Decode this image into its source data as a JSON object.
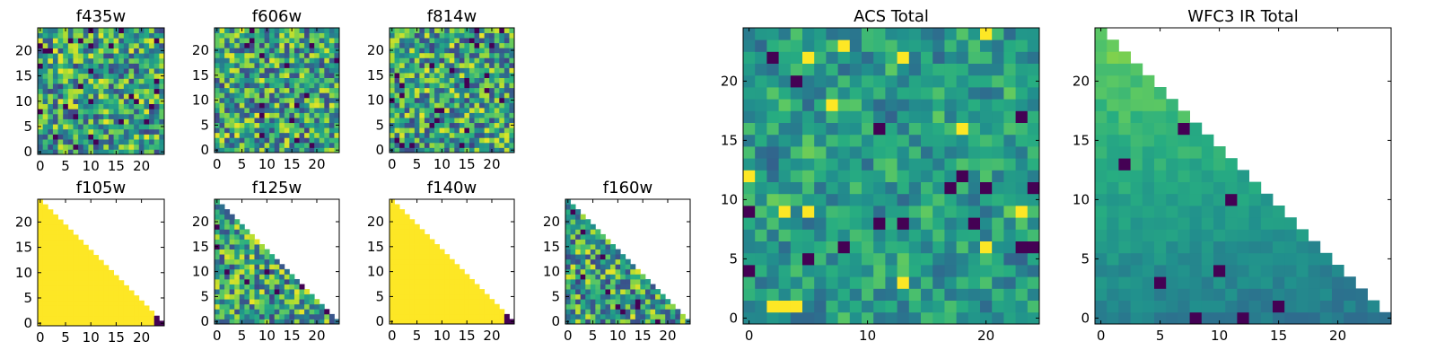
{
  "chart_data": [
    {
      "type": "heatmap",
      "title": "f435w",
      "grid_size": 25,
      "mask": "none",
      "style": "noisy",
      "seed": 11,
      "xticks": [
        0,
        5,
        10,
        15,
        20
      ],
      "yticks": [
        0,
        5,
        10,
        15,
        20
      ],
      "xlim": [
        -0.5,
        24.5
      ],
      "ylim": [
        -0.5,
        24.5
      ]
    },
    {
      "type": "heatmap",
      "title": "f606w",
      "grid_size": 25,
      "mask": "none",
      "style": "noisy",
      "seed": 23,
      "xticks": [
        0,
        5,
        10,
        15,
        20
      ],
      "yticks": [
        0,
        5,
        10,
        15,
        20
      ],
      "xlim": [
        -0.5,
        24.5
      ],
      "ylim": [
        -0.5,
        24.5
      ]
    },
    {
      "type": "heatmap",
      "title": "f814w",
      "grid_size": 25,
      "mask": "none",
      "style": "noisy",
      "seed": 37,
      "xticks": [
        0,
        5,
        10,
        15,
        20
      ],
      "yticks": [
        0,
        5,
        10,
        15,
        20
      ],
      "xlim": [
        -0.5,
        24.5
      ],
      "ylim": [
        -0.5,
        24.5
      ]
    },
    {
      "type": "heatmap",
      "title": "f105w",
      "grid_size": 25,
      "mask": "triangle",
      "style": "flat",
      "seed": 41,
      "xticks": [
        0,
        5,
        10,
        15,
        20
      ],
      "yticks": [
        0,
        5,
        10,
        15,
        20
      ],
      "xlim": [
        -0.5,
        24.5
      ],
      "ylim": [
        -0.5,
        24.5
      ]
    },
    {
      "type": "heatmap",
      "title": "f125w",
      "grid_size": 25,
      "mask": "triangle",
      "style": "noisy",
      "seed": 53,
      "xticks": [
        0,
        5,
        10,
        15,
        20
      ],
      "yticks": [
        0,
        5,
        10,
        15,
        20
      ],
      "xlim": [
        -0.5,
        24.5
      ],
      "ylim": [
        -0.5,
        24.5
      ]
    },
    {
      "type": "heatmap",
      "title": "f140w",
      "grid_size": 25,
      "mask": "triangle",
      "style": "flat",
      "seed": 67,
      "xticks": [
        0,
        5,
        10,
        15,
        20
      ],
      "yticks": [
        0,
        5,
        10,
        15,
        20
      ],
      "xlim": [
        -0.5,
        24.5
      ],
      "ylim": [
        -0.5,
        24.5
      ]
    },
    {
      "type": "heatmap",
      "title": "f160w",
      "grid_size": 25,
      "mask": "triangle",
      "style": "noisy",
      "seed": 79,
      "xticks": [
        0,
        5,
        10,
        15,
        20
      ],
      "yticks": [
        0,
        5,
        10,
        15,
        20
      ],
      "xlim": [
        -0.5,
        24.5
      ],
      "ylim": [
        -0.5,
        24.5
      ]
    },
    {
      "type": "heatmap",
      "title": "ACS Total",
      "grid_size": 25,
      "mask": "none",
      "style": "smooth",
      "seed": 97,
      "xticks": [
        0,
        10,
        20
      ],
      "yticks": [
        0,
        5,
        10,
        15,
        20
      ],
      "xlim": [
        -0.5,
        24.5
      ],
      "ylim": [
        -0.5,
        24.5
      ]
    },
    {
      "type": "heatmap",
      "title": "WFC3 IR Total",
      "grid_size": 25,
      "mask": "triangle",
      "style": "gradient",
      "seed": 113,
      "xticks": [
        0,
        5,
        10,
        15,
        20
      ],
      "yticks": [
        0,
        5,
        10,
        15,
        20
      ],
      "xlim": [
        -0.5,
        24.5
      ],
      "ylim": [
        -0.5,
        24.5
      ]
    }
  ]
}
